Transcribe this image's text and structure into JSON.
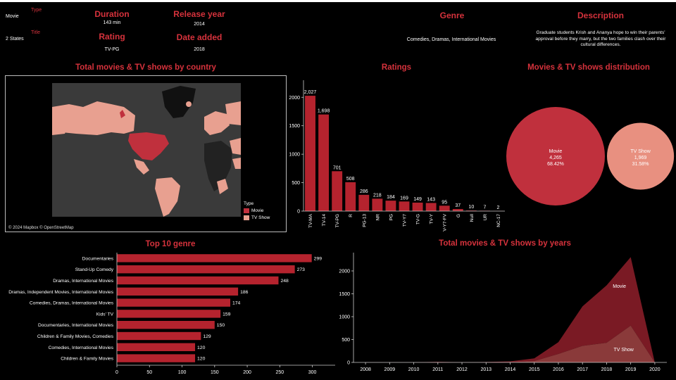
{
  "header": {
    "type_label": "Type",
    "type_value": "Movie",
    "title_label": "Title",
    "title_value": "2 States",
    "duration_label": "Duration",
    "duration_value": "143 min",
    "release_label": "Release year",
    "release_value": "2014",
    "rating_label": "Rating",
    "rating_value": "TV-PG",
    "date_added_label": "Date added",
    "date_added_value": "2018",
    "genre_label": "Genre",
    "genre_value": "Comedies, Dramas, International Movies",
    "description_label": "Description",
    "description_lines": [
      "Graduate students Krish and Ananya hope to win their parents'",
      "approval before they marry, but the two families clash over their",
      "cultural differences."
    ]
  },
  "map": {
    "title": "Total movies & TV shows by country",
    "attribution": "© 2024 Mapbox © OpenStreetMap",
    "legend_title": "Type",
    "legend_items": [
      {
        "label": "Movie",
        "color": "#c0303d"
      },
      {
        "label": "TV Show",
        "color": "#e8a090"
      }
    ]
  },
  "chart_data": [
    {
      "type": "bar",
      "title": "Ratings",
      "categories": [
        "TV-MA",
        "TV-14",
        "TV-PG",
        "R",
        "PG-13",
        "NR",
        "PG",
        "TV-Y7",
        "TV-G",
        "TV-Y",
        "TV-Y7-FV",
        "G",
        "Null",
        "UR",
        "NC-17"
      ],
      "values": [
        2027,
        1698,
        701,
        508,
        286,
        218,
        184,
        169,
        149,
        143,
        95,
        37,
        10,
        7,
        2
      ],
      "value_labels": [
        "2,027",
        "1,698",
        "701",
        "508",
        "286",
        "218",
        "184",
        "169",
        "149",
        "143",
        "95",
        "37",
        "10",
        "7",
        "2"
      ],
      "ylim": [
        0,
        2300
      ],
      "yticks": [
        0,
        500,
        1000,
        1500,
        2000
      ],
      "color": "#b5232e"
    },
    {
      "type": "bubble",
      "title": "Movies & TV shows distribution",
      "items": [
        {
          "name": "Movie",
          "count_label": "4,265",
          "pct_label": "68.42%",
          "value": 4265,
          "color": "#c0303d"
        },
        {
          "name": "TV Show",
          "count_label": "1,969",
          "pct_label": "31.58%",
          "value": 1969,
          "color": "#e89080"
        }
      ]
    },
    {
      "type": "bar",
      "orientation": "horizontal",
      "title": "Top 10 genre",
      "categories": [
        "Documentaries",
        "Stand-Up Comedy",
        "Dramas, International Movies",
        "Dramas, Independent Movies, International Movies",
        "Comedies, Dramas, International Movies",
        "Kids' TV",
        "Documentaries, International Movies",
        "Children & Family Movies, Comedies",
        "Comedies, International Movies",
        "Children & Family Movies"
      ],
      "values": [
        299,
        273,
        248,
        186,
        174,
        159,
        150,
        129,
        120,
        120
      ],
      "xlim": [
        0,
        335
      ],
      "xticks": [
        0,
        50,
        100,
        150,
        200,
        250,
        300
      ],
      "color": "#b5232e"
    },
    {
      "type": "area",
      "title": "Total movies & TV shows by years",
      "x": [
        2008,
        2009,
        2010,
        2011,
        2012,
        2013,
        2014,
        2015,
        2016,
        2017,
        2018,
        2019,
        2020
      ],
      "series": [
        {
          "name": "Movie",
          "values": [
            1,
            2,
            1,
            13,
            3,
            6,
            19,
            58,
            258,
            864,
            1255,
            1497,
            0
          ],
          "color": "#7a1a24"
        },
        {
          "name": "TV Show",
          "values": [
            0,
            0,
            0,
            0,
            0,
            4,
            5,
            30,
            185,
            361,
            429,
            804,
            0
          ],
          "color": "#8a3a3a"
        }
      ],
      "ylim": [
        0,
        2400
      ],
      "yticks": [
        0,
        500,
        1000,
        1500,
        2000
      ]
    }
  ]
}
